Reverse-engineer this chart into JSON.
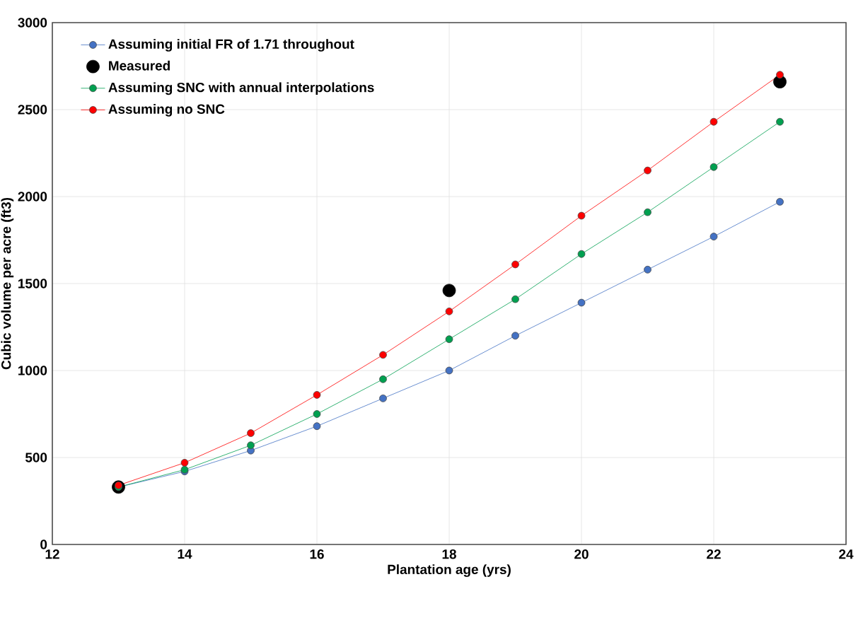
{
  "chart_data": {
    "type": "line",
    "xlabel": "Plantation age (yrs)",
    "ylabel": "Cubic volume per acre (ft3)",
    "x": [
      13,
      14,
      15,
      16,
      17,
      18,
      19,
      20,
      21,
      22,
      23
    ],
    "series": [
      {
        "name": "Assuming initial FR of 1.71 throughout",
        "color": "#4472c4",
        "values": [
          330,
          420,
          540,
          680,
          840,
          1000,
          1200,
          1390,
          1580,
          1770,
          1970
        ]
      },
      {
        "name": "Measured",
        "type": "scatter",
        "color": "#000000",
        "x": [
          13,
          18,
          23
        ],
        "values": [
          330,
          1460,
          2660
        ]
      },
      {
        "name": "Assuming SNC with annual interpolations",
        "color": "#00a050",
        "values": [
          330,
          430,
          570,
          750,
          950,
          1180,
          1410,
          1670,
          1910,
          2170,
          2430
        ]
      },
      {
        "name": "Assuming no SNC",
        "color": "#ff0000",
        "values": [
          340,
          470,
          640,
          860,
          1090,
          1340,
          1610,
          1890,
          2150,
          2430,
          2700
        ]
      }
    ],
    "xlim": [
      12,
      24
    ],
    "xticks": [
      12,
      14,
      16,
      18,
      20,
      22,
      24
    ],
    "ylim": [
      0,
      3000
    ],
    "yticks": [
      0,
      500,
      1000,
      1500,
      2000,
      2500,
      3000
    ],
    "grid": true,
    "legend": "top left",
    "marker": "circle"
  }
}
